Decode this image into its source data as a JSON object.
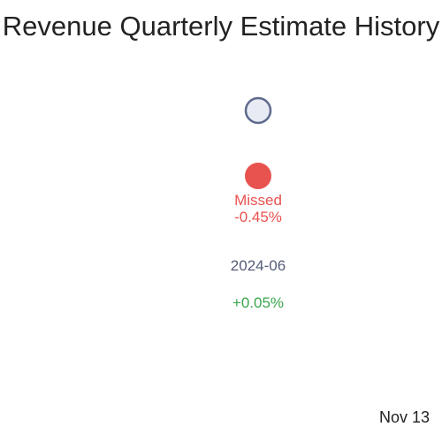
{
  "chart_data": {
    "type": "scatter",
    "title": "Revenue Quarterly Estimate History",
    "quarter": "2024-06",
    "estimate": {
      "color": "#c5cfe0"
    },
    "actual": {
      "result": "Missed",
      "surprise": "-0.45%",
      "color": "#e8524f"
    },
    "change": {
      "value": "+0.05%",
      "color": "#3aa64e"
    },
    "grid": false,
    "legend": "none"
  },
  "footer": {
    "date": "Nov 13"
  }
}
